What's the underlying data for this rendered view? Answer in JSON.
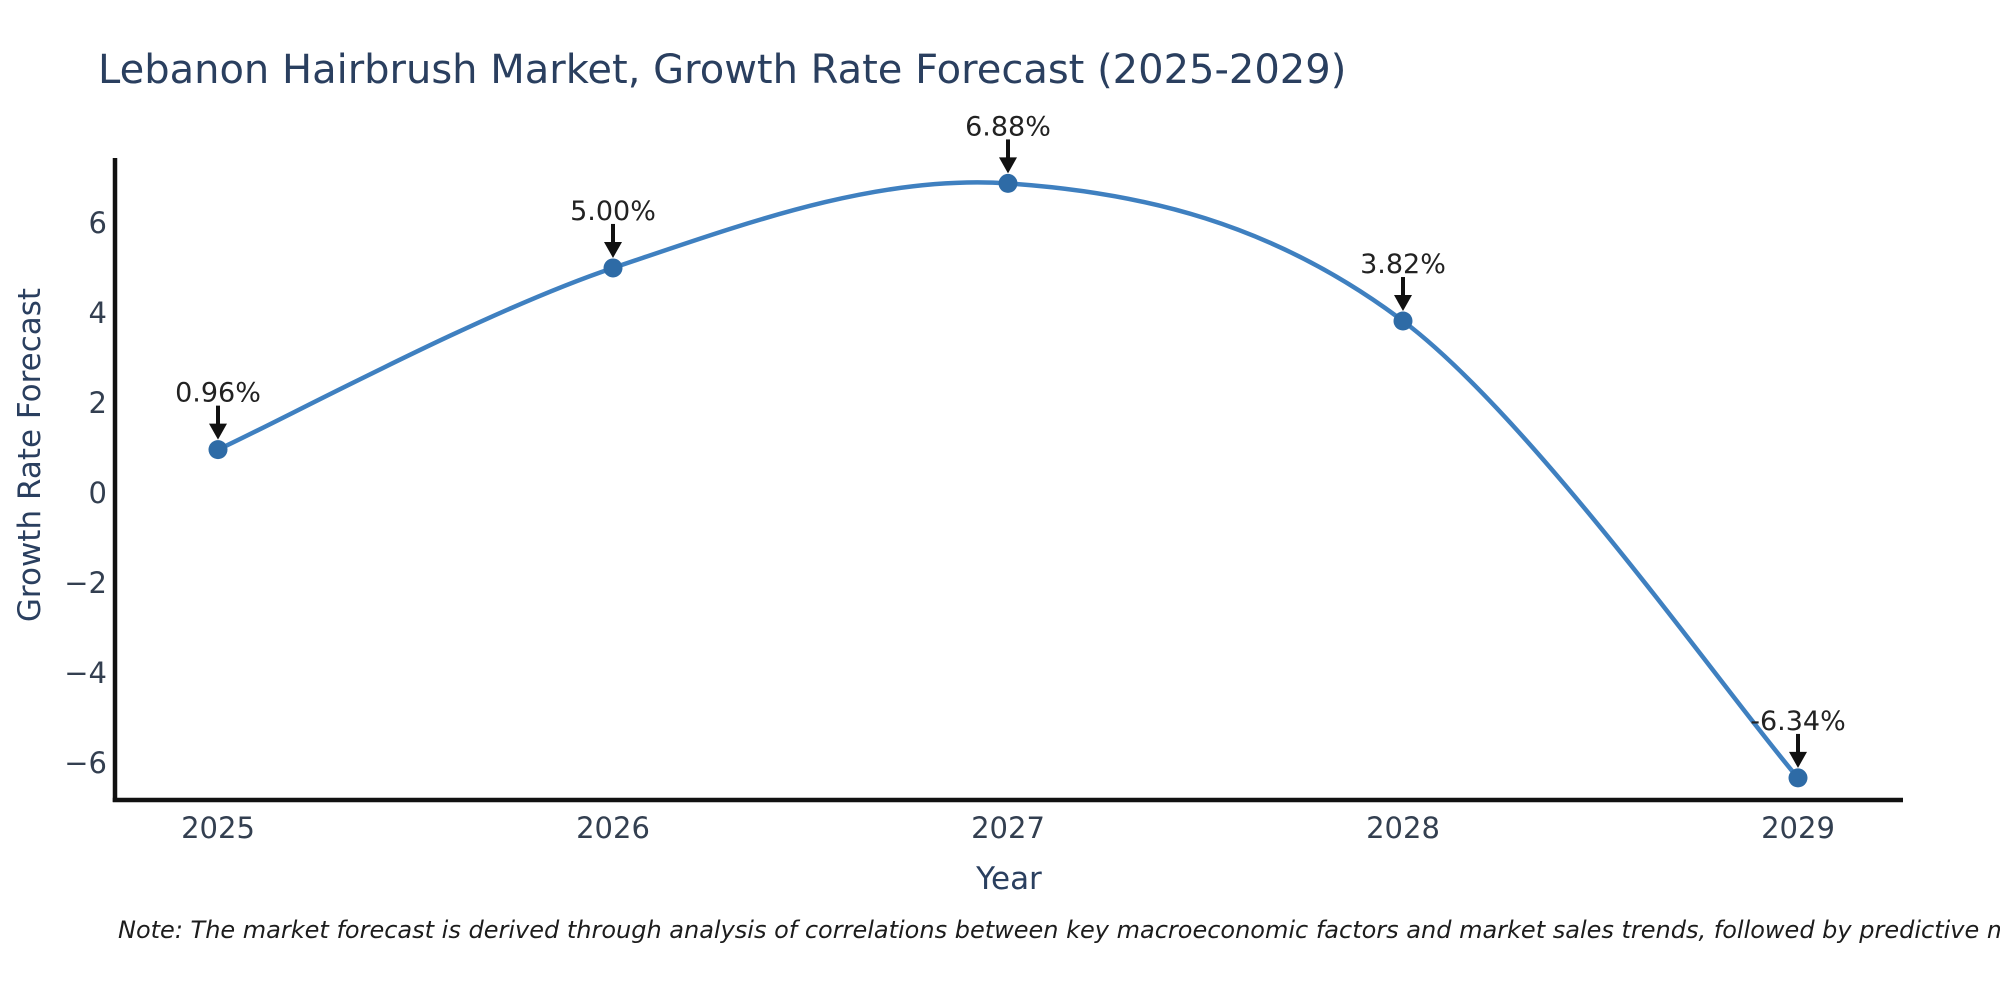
{
  "title": "Lebanon Hairbrush Market, Growth Rate Forecast (2025-2029)",
  "note": "Note: The market forecast is derived through analysis of correlations between key macroeconomic factors and market sales trends, followed by predictive modeling to project future sales",
  "colors": {
    "background": "#ffffff",
    "line": "#3f80c0",
    "marker": "#2e6ba6",
    "axis_line": "#111111",
    "arrow": "#111111",
    "title_text": "#2a3f5f",
    "tick_text": "#333f50",
    "annotation_text": "#222222"
  },
  "chart_data": {
    "type": "line",
    "title": "Lebanon Hairbrush Market, Growth Rate Forecast (2025-2029)",
    "xlabel": "Year",
    "ylabel": "Growth Rate Forecast",
    "x": [
      2025,
      2026,
      2027,
      2028,
      2029
    ],
    "values": [
      0.96,
      5.0,
      6.88,
      3.82,
      -6.34
    ],
    "point_labels": [
      "0.96%",
      "5.00%",
      "6.88%",
      "3.82%",
      "-6.34%"
    ],
    "series_name": "Growth Rate Forecast",
    "yticks": [
      6,
      4,
      2,
      0,
      -2,
      -4,
      -6
    ],
    "ylim": [
      -6.83,
      7.44
    ],
    "xlim": [
      2024.74,
      2029.27
    ],
    "grid": false,
    "legend": "none",
    "curve": "spline",
    "annotations": "arrow-to-point"
  }
}
